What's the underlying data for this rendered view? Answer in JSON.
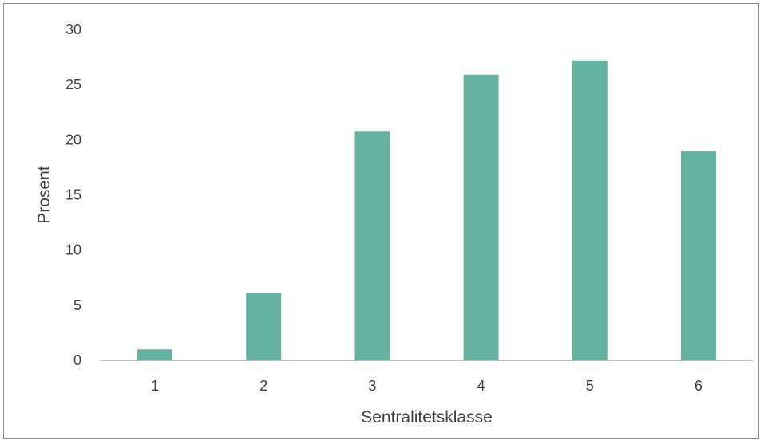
{
  "chart_data": {
    "type": "bar",
    "title": "",
    "xlabel": "Sentralitetsklasse",
    "ylabel": "Prosent",
    "categories": [
      "1",
      "2",
      "3",
      "4",
      "5",
      "6"
    ],
    "values": [
      1.0,
      6.1,
      20.8,
      25.9,
      27.2,
      19.0
    ],
    "ylim": [
      0,
      30
    ],
    "yticks": [
      0,
      5,
      10,
      15,
      20,
      25,
      30
    ],
    "grid": false,
    "legend": "none",
    "colors": {
      "bar": "#66b2a2",
      "axis": "#bfbfbf",
      "text": "#404040"
    }
  }
}
